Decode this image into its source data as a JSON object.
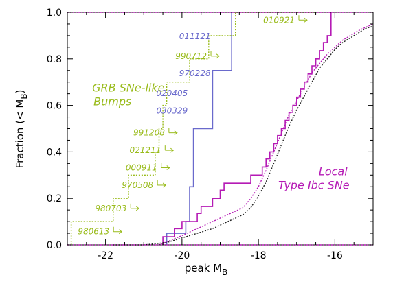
{
  "chart_data": {
    "type": "line",
    "xlabel": "peak M",
    "xlabel_sub": "B",
    "ylabel": "Fraction (< M",
    "ylabel_sub": "B",
    "ylabel_close": ")",
    "xlim": [
      -23.0,
      -15.0
    ],
    "ylim": [
      0.0,
      1.0
    ],
    "xticks": [
      -22,
      -20,
      -18,
      -16
    ],
    "xtick_labels": [
      "-22",
      "-20",
      "-18",
      "-16"
    ],
    "yticks": [
      0.0,
      0.2,
      0.4,
      0.6,
      0.8,
      1.0
    ],
    "ytick_labels": [
      "0.0",
      "0.2",
      "0.4",
      "0.6",
      "0.8",
      "1.0"
    ],
    "colors": {
      "grb_bumps": "#99bb1a",
      "grb_sne": "#6a6acc",
      "local": "#b51ab5",
      "reference": "#222222",
      "axis": "#000000"
    },
    "series": [
      {
        "key": "grb_bumps",
        "style": "dotted-step",
        "points": [
          [
            -22.9,
            0.0
          ],
          [
            -22.9,
            0.1
          ],
          [
            -21.8,
            0.1
          ],
          [
            -21.8,
            0.2
          ],
          [
            -21.4,
            0.2
          ],
          [
            -21.4,
            0.3
          ],
          [
            -20.7,
            0.3
          ],
          [
            -20.7,
            0.4
          ],
          [
            -20.6,
            0.4
          ],
          [
            -20.6,
            0.5
          ],
          [
            -20.5,
            0.5
          ],
          [
            -20.5,
            0.6
          ],
          [
            -20.4,
            0.6
          ],
          [
            -20.4,
            0.7
          ],
          [
            -19.8,
            0.7
          ],
          [
            -19.8,
            0.8
          ],
          [
            -19.3,
            0.8
          ],
          [
            -19.3,
            0.9
          ],
          [
            -18.6,
            0.9
          ],
          [
            -18.6,
            1.0
          ],
          [
            -16.5,
            1.0
          ]
        ]
      },
      {
        "key": "grb_sne",
        "style": "solid-step",
        "points": [
          [
            -20.4,
            0.0
          ],
          [
            -20.4,
            0.05
          ],
          [
            -19.9,
            0.05
          ],
          [
            -19.9,
            0.1
          ],
          [
            -19.8,
            0.1
          ],
          [
            -19.8,
            0.25
          ],
          [
            -19.7,
            0.25
          ],
          [
            -19.7,
            0.5
          ],
          [
            -19.2,
            0.5
          ],
          [
            -19.2,
            0.75
          ],
          [
            -18.7,
            0.75
          ],
          [
            -18.7,
            1.0
          ]
        ]
      },
      {
        "key": "local",
        "style": "solid-step",
        "points": [
          [
            -20.5,
            0.0
          ],
          [
            -20.5,
            0.035
          ],
          [
            -20.2,
            0.035
          ],
          [
            -20.2,
            0.07
          ],
          [
            -20.0,
            0.07
          ],
          [
            -20.0,
            0.1
          ],
          [
            -19.6,
            0.1
          ],
          [
            -19.6,
            0.135
          ],
          [
            -19.5,
            0.135
          ],
          [
            -19.5,
            0.165
          ],
          [
            -19.2,
            0.165
          ],
          [
            -19.2,
            0.2
          ],
          [
            -19.0,
            0.2
          ],
          [
            -19.0,
            0.235
          ],
          [
            -18.9,
            0.235
          ],
          [
            -18.9,
            0.265
          ],
          [
            -18.2,
            0.265
          ],
          [
            -18.2,
            0.3
          ],
          [
            -17.9,
            0.3
          ],
          [
            -17.9,
            0.335
          ],
          [
            -17.8,
            0.335
          ],
          [
            -17.8,
            0.37
          ],
          [
            -17.7,
            0.37
          ],
          [
            -17.7,
            0.4
          ],
          [
            -17.6,
            0.4
          ],
          [
            -17.6,
            0.435
          ],
          [
            -17.5,
            0.435
          ],
          [
            -17.5,
            0.47
          ],
          [
            -17.4,
            0.47
          ],
          [
            -17.4,
            0.5
          ],
          [
            -17.3,
            0.5
          ],
          [
            -17.3,
            0.535
          ],
          [
            -17.2,
            0.535
          ],
          [
            -17.2,
            0.57
          ],
          [
            -17.1,
            0.57
          ],
          [
            -17.1,
            0.6
          ],
          [
            -17.0,
            0.6
          ],
          [
            -17.0,
            0.635
          ],
          [
            -16.9,
            0.635
          ],
          [
            -16.9,
            0.67
          ],
          [
            -16.8,
            0.67
          ],
          [
            -16.8,
            0.7
          ],
          [
            -16.7,
            0.7
          ],
          [
            -16.7,
            0.735
          ],
          [
            -16.6,
            0.735
          ],
          [
            -16.6,
            0.77
          ],
          [
            -16.5,
            0.77
          ],
          [
            -16.5,
            0.8
          ],
          [
            -16.4,
            0.8
          ],
          [
            -16.4,
            0.835
          ],
          [
            -16.3,
            0.835
          ],
          [
            -16.3,
            0.87
          ],
          [
            -16.2,
            0.87
          ],
          [
            -16.2,
            0.9
          ],
          [
            -16.1,
            0.9
          ],
          [
            -16.1,
            1.0
          ]
        ]
      },
      {
        "key": "local",
        "style": "dotted",
        "points": [
          [
            -20.6,
            0.0
          ],
          [
            -20.0,
            0.04
          ],
          [
            -19.6,
            0.07
          ],
          [
            -19.2,
            0.1
          ],
          [
            -18.8,
            0.13
          ],
          [
            -18.4,
            0.16
          ],
          [
            -18.2,
            0.2
          ],
          [
            -18.0,
            0.25
          ],
          [
            -17.8,
            0.32
          ],
          [
            -17.6,
            0.4
          ],
          [
            -17.4,
            0.48
          ],
          [
            -17.2,
            0.56
          ],
          [
            -17.0,
            0.62
          ],
          [
            -16.8,
            0.68
          ],
          [
            -16.6,
            0.74
          ],
          [
            -16.4,
            0.78
          ],
          [
            -16.2,
            0.82
          ],
          [
            -16.0,
            0.85
          ],
          [
            -15.8,
            0.88
          ],
          [
            -15.6,
            0.9
          ],
          [
            -15.4,
            0.92
          ],
          [
            -15.2,
            0.935
          ],
          [
            -15.0,
            0.95
          ]
        ]
      },
      {
        "key": "reference",
        "style": "dotted",
        "points": [
          [
            -21.8,
            0.0
          ],
          [
            -21.0,
            0.0
          ],
          [
            -20.4,
            0.01
          ],
          [
            -20.0,
            0.03
          ],
          [
            -19.6,
            0.05
          ],
          [
            -19.2,
            0.07
          ],
          [
            -18.8,
            0.1
          ],
          [
            -18.4,
            0.13
          ],
          [
            -18.2,
            0.16
          ],
          [
            -18.0,
            0.21
          ],
          [
            -17.8,
            0.27
          ],
          [
            -17.6,
            0.35
          ],
          [
            -17.4,
            0.43
          ],
          [
            -17.2,
            0.51
          ],
          [
            -17.0,
            0.58
          ],
          [
            -16.8,
            0.64
          ],
          [
            -16.6,
            0.7
          ],
          [
            -16.4,
            0.76
          ],
          [
            -16.2,
            0.8
          ],
          [
            -16.0,
            0.84
          ],
          [
            -15.8,
            0.87
          ],
          [
            -15.6,
            0.89
          ],
          [
            -15.4,
            0.91
          ],
          [
            -15.2,
            0.93
          ],
          [
            -15.0,
            0.94
          ]
        ]
      }
    ],
    "grb_labels": [
      {
        "text": "980613",
        "x": -21.9,
        "y": 0.045,
        "arrow": true,
        "color": "grb_bumps"
      },
      {
        "text": "980703",
        "x": -21.45,
        "y": 0.145,
        "arrow": true,
        "color": "grb_bumps"
      },
      {
        "text": "970508",
        "x": -20.75,
        "y": 0.245,
        "arrow": true,
        "color": "grb_bumps"
      },
      {
        "text": "000911",
        "x": -20.65,
        "y": 0.32,
        "arrow": true,
        "color": "grb_bumps"
      },
      {
        "text": "021211",
        "x": -20.55,
        "y": 0.395,
        "arrow": true,
        "color": "grb_bumps"
      },
      {
        "text": "991208",
        "x": -20.45,
        "y": 0.47,
        "arrow": true,
        "color": "grb_bumps"
      },
      {
        "text": "030329",
        "x": -19.85,
        "y": 0.565,
        "arrow": false,
        "color": "grb_sne"
      },
      {
        "text": "020405",
        "x": -19.85,
        "y": 0.64,
        "arrow": false,
        "color": "grb_sne"
      },
      {
        "text": "970228",
        "x": -19.25,
        "y": 0.725,
        "arrow": false,
        "color": "grb_sne"
      },
      {
        "text": "990712",
        "x": -19.35,
        "y": 0.8,
        "arrow": true,
        "color": "grb_bumps"
      },
      {
        "text": "011121",
        "x": -19.25,
        "y": 0.885,
        "arrow": false,
        "color": "grb_sne"
      },
      {
        "text": "010921",
        "x": -17.05,
        "y": 0.955,
        "arrow": true,
        "color": "grb_bumps"
      }
    ],
    "annotations": [
      {
        "lines": [
          "GRB SNe-like",
          "Bumps"
        ],
        "x": -22.35,
        "y": 0.66,
        "color": "grb_bumps"
      },
      {
        "lines": [
          "Local",
          "Type Ibc SNe"
        ],
        "x": -16.55,
        "y": 0.3,
        "color": "local"
      }
    ]
  }
}
